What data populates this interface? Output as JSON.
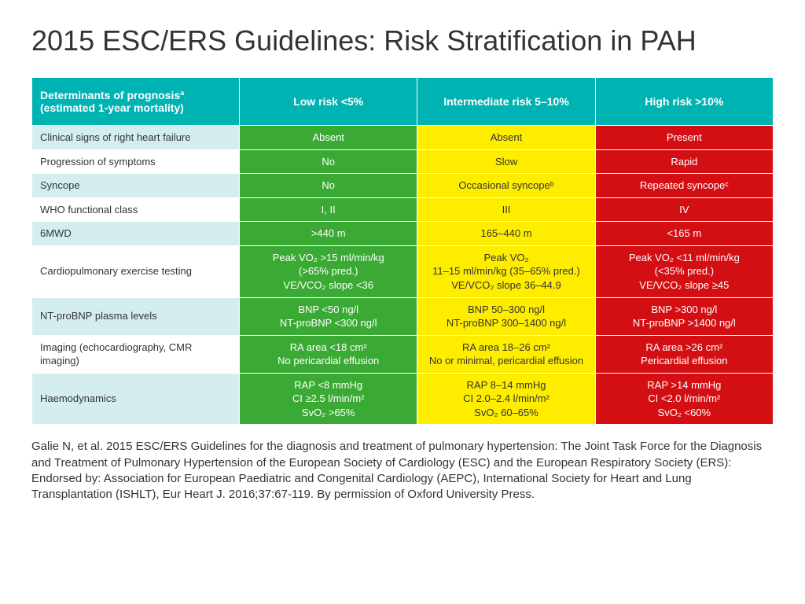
{
  "title": "2015 ESC/ERS Guidelines: Risk Stratification in PAH",
  "table": {
    "header_bg": "#00b3b3",
    "row_label_alt_bgs": [
      "#d4eef0",
      "#ffffff"
    ],
    "risk_bgs": {
      "low": "#3aaa35",
      "intermediate": "#ffed00",
      "high": "#d40f14"
    },
    "risk_text_colors": {
      "low": "#ffffff",
      "intermediate": "#333333",
      "high": "#ffffff"
    },
    "columns": [
      "Determinants of prognosisª (estimated 1-year mortality)",
      "Low risk <5%",
      "Intermediate risk 5–10%",
      "High risk >10%"
    ],
    "rows": [
      {
        "label": "Clinical signs of right heart failure",
        "low": "Absent",
        "intermediate": "Absent",
        "high": "Present"
      },
      {
        "label": "Progression of symptoms",
        "low": "No",
        "intermediate": "Slow",
        "high": "Rapid"
      },
      {
        "label": "Syncope",
        "low": "No",
        "intermediate": "Occasional syncopeᵇ",
        "high": "Repeated syncopeᶜ"
      },
      {
        "label": "WHO functional class",
        "low": "I, II",
        "intermediate": "III",
        "high": "IV"
      },
      {
        "label": "6MWD",
        "low": ">440 m",
        "intermediate": "165–440 m",
        "high": "<165 m"
      },
      {
        "label": "Cardiopulmonary exercise testing",
        "low": "Peak VO₂ >15 ml/min/kg\n(>65% pred.)\nVE/VCO₂ slope <36",
        "intermediate": "Peak VO₂\n11–15 ml/min/kg (35–65% pred.)\nVE/VCO₂ slope 36–44.9",
        "high": "Peak VO₂ <11 ml/min/kg\n(<35% pred.)\nVE/VCO₂ slope ≥45"
      },
      {
        "label": "NT-proBNP plasma levels",
        "low": "BNP <50 ng/l\nNT-proBNP <300 ng/l",
        "intermediate": "BNP 50–300 ng/l\nNT-proBNP 300–1400 ng/l",
        "high": "BNP >300 ng/l\nNT-proBNP >1400 ng/l"
      },
      {
        "label": "Imaging (echocardiography, CMR imaging)",
        "low": "RA area <18 cm²\nNo pericardial effusion",
        "intermediate": "RA area 18–26 cm²\nNo or minimal, pericardial effusion",
        "high": "RA area >26 cm²\nPericardial effusion"
      },
      {
        "label": "Haemodynamics",
        "low": "RAP <8 mmHg\nCI ≥2.5 l/min/m²\nSvO₂ >65%",
        "intermediate": "RAP 8–14 mmHg\nCI 2.0–2.4 l/min/m²\nSvO₂ 60–65%",
        "high": "RAP >14 mmHg\nCI <2.0 l/min/m²\nSvO₂ <60%"
      }
    ]
  },
  "citation": "Galie N, et al. 2015 ESC/ERS Guidelines for the diagnosis and treatment of pulmonary hypertension: The Joint Task Force for the Diagnosis and Treatment of Pulmonary Hypertension of the European Society of Cardiology (ESC) and the European Respiratory Society (ERS): Endorsed by: Association for European Paediatric and Congenital Cardiology (AEPC), International Society for Heart and Lung Transplantation (ISHLT), Eur Heart J. 2016;37:67-119. By permission of Oxford University Press."
}
